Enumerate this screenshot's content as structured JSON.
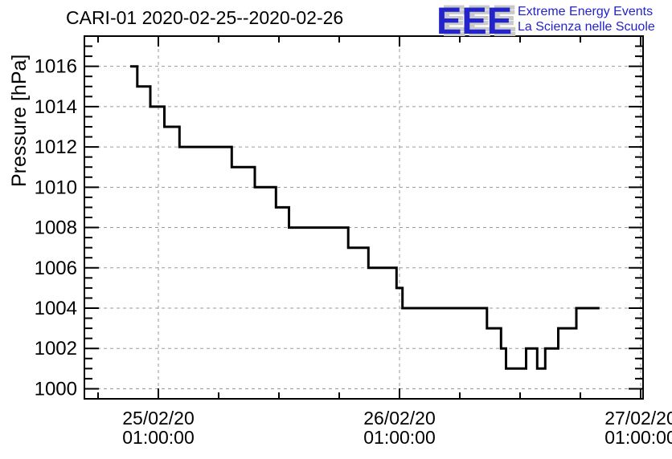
{
  "header": {
    "title": "CARI-01 2020-02-25--2020-02-26",
    "logo": {
      "acronym": "EEE",
      "tagline_line1": "Extreme Energy Events",
      "tagline_line2": "La Scienza nelle Scuole",
      "blue": "#2323cc",
      "shadow_gray": "#c9c9c9"
    }
  },
  "chart_data": {
    "type": "line",
    "subtype": "step",
    "title": "CARI-01 2020-02-25--2020-02-26",
    "ylabel": "Pressure [hPa]",
    "xlabel": "",
    "x_unit_hours_from": "2020-02-25 00:00:00",
    "xlim": [
      -6.36,
      49.24
    ],
    "ylim": [
      999.5,
      1017.5
    ],
    "y_major_ticks": [
      1000,
      1002,
      1004,
      1006,
      1008,
      1010,
      1012,
      1014,
      1016
    ],
    "y_minor_step": 0.5,
    "x_major_ticks": [
      {
        "hours": 1,
        "label_line1": "25/02/20",
        "label_line2": "01:00:00"
      },
      {
        "hours": 25,
        "label_line1": "26/02/20",
        "label_line2": "01:00:00"
      },
      {
        "hours": 49,
        "label_line1": "27/02/20",
        "label_line2": "01:00:00"
      }
    ],
    "x_minor_step_hours": 6,
    "grid": {
      "show": true,
      "style": "dashed",
      "color": "#9a9a9a"
    },
    "line": {
      "color": "#000000",
      "width": 3
    },
    "segments_hpa": [
      {
        "t_start": -1.8,
        "t_end": -1.1,
        "hpa": 1016
      },
      {
        "t_start": -1.1,
        "t_end": 0.2,
        "hpa": 1015
      },
      {
        "t_start": 0.2,
        "t_end": 1.6,
        "hpa": 1014
      },
      {
        "t_start": 1.6,
        "t_end": 3.1,
        "hpa": 1013
      },
      {
        "t_start": 3.1,
        "t_end": 8.3,
        "hpa": 1012
      },
      {
        "t_start": 8.3,
        "t_end": 10.6,
        "hpa": 1011
      },
      {
        "t_start": 10.6,
        "t_end": 12.7,
        "hpa": 1010
      },
      {
        "t_start": 12.7,
        "t_end": 14.0,
        "hpa": 1009
      },
      {
        "t_start": 14.0,
        "t_end": 19.9,
        "hpa": 1008
      },
      {
        "t_start": 19.9,
        "t_end": 21.9,
        "hpa": 1007
      },
      {
        "t_start": 21.9,
        "t_end": 24.7,
        "hpa": 1006
      },
      {
        "t_start": 24.7,
        "t_end": 25.3,
        "hpa": 1005
      },
      {
        "t_start": 25.3,
        "t_end": 33.7,
        "hpa": 1004
      },
      {
        "t_start": 33.7,
        "t_end": 35.1,
        "hpa": 1003
      },
      {
        "t_start": 35.1,
        "t_end": 35.6,
        "hpa": 1002
      },
      {
        "t_start": 35.6,
        "t_end": 37.6,
        "hpa": 1001
      },
      {
        "t_start": 37.6,
        "t_end": 38.7,
        "hpa": 1002
      },
      {
        "t_start": 38.7,
        "t_end": 39.5,
        "hpa": 1001
      },
      {
        "t_start": 39.5,
        "t_end": 40.8,
        "hpa": 1002
      },
      {
        "t_start": 40.8,
        "t_end": 42.6,
        "hpa": 1003
      },
      {
        "t_start": 42.6,
        "t_end": 44.9,
        "hpa": 1004
      }
    ]
  }
}
